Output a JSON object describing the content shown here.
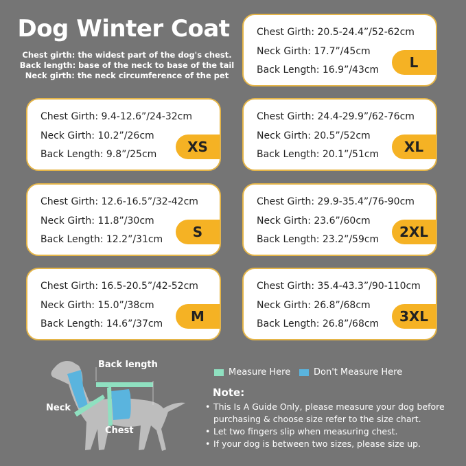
{
  "title": "Dog Winter Coat",
  "definitions": [
    "Chest girth: the widest part of the dog's chest.",
    "Back length: base of the neck to base of the tail",
    "Neck girth: the neck circumference of the pet"
  ],
  "sizes": [
    {
      "size": "L",
      "chest": "Chest Girth: 20.5-24.4”/52-62cm",
      "neck": "Neck Girth: 17.7”/45cm",
      "back": "Back Length: 16.9”/43cm"
    },
    {
      "size": "XS",
      "chest": "Chest Girth: 9.4-12.6”/24-32cm",
      "neck": "Neck Girth: 10.2”/26cm",
      "back": "Back Length: 9.8”/25cm"
    },
    {
      "size": "XL",
      "chest": "Chest Girth: 24.4-29.9”/62-76cm",
      "neck": "Neck Girth: 20.5”/52cm",
      "back": "Back Length: 20.1”/51cm"
    },
    {
      "size": "S",
      "chest": "Chest Girth: 12.6-16.5”/32-42cm",
      "neck": "Neck Girth: 11.8”/30cm",
      "back": "Back Length: 12.2”/31cm"
    },
    {
      "size": "2XL",
      "chest": "Chest Girth: 29.9-35.4”/76-90cm",
      "neck": "Neck Girth: 23.6”/60cm",
      "back": "Back Length: 23.2”/59cm"
    },
    {
      "size": "M",
      "chest": "Chest Girth: 16.5-20.5”/42-52cm",
      "neck": "Neck Girth: 15.0”/38cm",
      "back": "Back Length: 14.6”/37cm"
    },
    {
      "size": "3XL",
      "chest": "Chest Girth: 35.4-43.3”/90-110cm",
      "neck": "Neck Girth: 26.8”/68cm",
      "back": "Back Length: 26.8”/68cm"
    }
  ],
  "diagram": {
    "back_label": "Back length",
    "neck_label": "Neck",
    "chest_label": "Chest"
  },
  "legend": {
    "measure": "Measure Here",
    "dont_measure": "Don't Measure Here",
    "measure_color": "#8fe0c0",
    "dont_color": "#5ab4de"
  },
  "note": {
    "heading": "Note:",
    "items": [
      "This Is A Guide Only, please measure your dog before purchasing & choose size refer to the size chart.",
      "Let two fingers slip when measuring chest.",
      "If your dog is between two sizes, please size up."
    ]
  },
  "colors": {
    "background": "#757575",
    "card_border": "#e5b548",
    "badge": "#f5b224"
  }
}
